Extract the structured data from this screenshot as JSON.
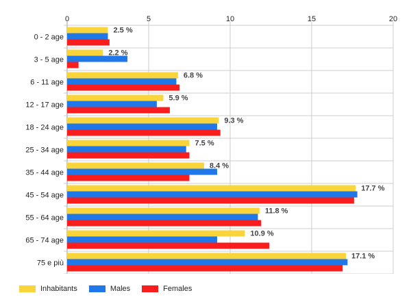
{
  "chart_data": {
    "type": "bar",
    "orientation": "horizontal",
    "categories": [
      "0 - 2 age",
      "3 - 5 age",
      "6 - 11 age",
      "12 - 17 age",
      "18 - 24 age",
      "25 - 34 age",
      "35 - 44 age",
      "45 - 54 age",
      "55 - 64 age",
      "65 - 74 age",
      "75 e più"
    ],
    "series": [
      {
        "name": "Inhabitants",
        "color": "#f9d43a",
        "values": [
          2.5,
          2.2,
          6.8,
          5.9,
          9.3,
          7.5,
          8.4,
          17.7,
          11.8,
          10.9,
          17.1
        ]
      },
      {
        "name": "Males",
        "color": "#1f77e8",
        "values": [
          2.5,
          3.7,
          6.7,
          5.5,
          9.2,
          7.3,
          9.2,
          17.8,
          11.7,
          9.2,
          17.2
        ]
      },
      {
        "name": "Females",
        "color": "#f91d1d",
        "values": [
          2.6,
          0.7,
          6.9,
          6.3,
          9.4,
          7.5,
          7.5,
          17.6,
          11.9,
          12.4,
          16.9
        ]
      }
    ],
    "data_labels": [
      "2.5 %",
      "2.2 %",
      "6.8 %",
      "5.9 %",
      "9.3 %",
      "7.5 %",
      "8.4 %",
      "17.7 %",
      "11.8 %",
      "10.9 %",
      "17.1 %"
    ],
    "xlim": [
      0,
      20
    ],
    "xticks": [
      0,
      5,
      10,
      15,
      20
    ],
    "x_axis_position": "top",
    "grid": true,
    "legend": "bottom-left",
    "title": "",
    "xlabel": "",
    "ylabel": ""
  }
}
